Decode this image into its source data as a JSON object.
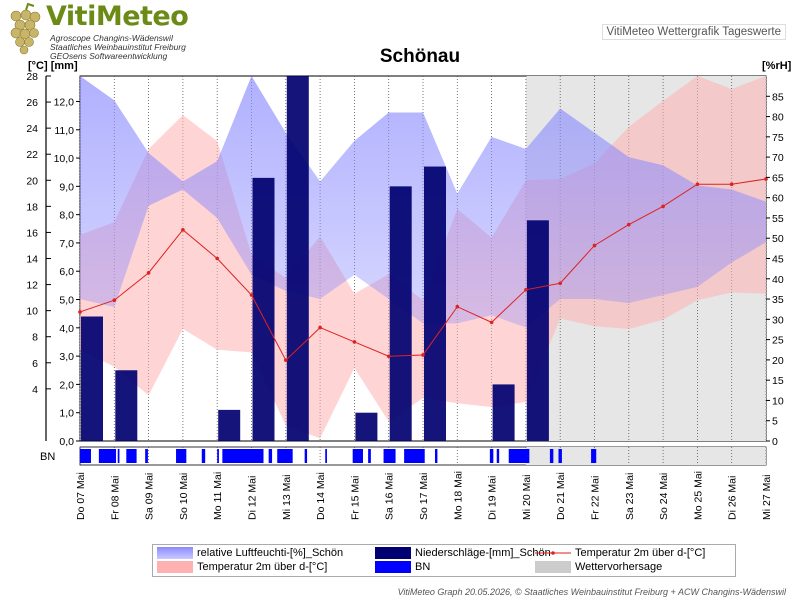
{
  "header": {
    "brand": "VitiMeteo",
    "brand_lines": [
      "Agroscope Changins-Wädenswil",
      "Staatliches Weinbauinstitut Freiburg",
      "GEOsens Softwareentwicklung"
    ],
    "top_right": "VitiMeteo Wettergrafik Tageswerte"
  },
  "footer": "VitiMeteo Graph 20.05.2026, © Staatliches Weinbauinstitut Freiburg + ACW Changins-Wädenswil",
  "colors": {
    "humidity_band": "#8a8aff",
    "temp_band": "#ffb0b0",
    "precip": "#000070",
    "temp_line": "#dd2222",
    "bn": "#0000ff",
    "forecast": "#e6e6e6"
  },
  "chart_data": {
    "type": "line",
    "title": "Schönau",
    "ylabel_left": "[°C] [mm]",
    "ylabel_right": "[%rH]",
    "x": [
      "Do 07 Mai",
      "Fr 08 Mai",
      "Sa 09 Mai",
      "So 10 Mai",
      "Mo 11 Mai",
      "Di 12 Mai",
      "Mi 13 Mai",
      "Do 14 Mai",
      "Fr 15 Mai",
      "Sa 16 Mai",
      "So 17 Mai",
      "Mo 18 Mai",
      "Di 19 Mai",
      "Mi 20 Mai",
      "Do 21 Mai",
      "Fr 22 Mai",
      "Sa 23 Mai",
      "So 24 Mai",
      "Mo 25 Mai",
      "Di 26 Mai",
      "Mi 27 Mai"
    ],
    "ylim_temp": [
      0,
      28
    ],
    "ylim_precip": [
      0,
      12.9
    ],
    "ylim_humidity": [
      0,
      90
    ],
    "temp_ticks": [
      4,
      6,
      8,
      10,
      12,
      14,
      16,
      18,
      20,
      22,
      24,
      26,
      28
    ],
    "precip_ticks": [
      "0,0",
      "1,0",
      "2,0",
      "3,0",
      "4,0",
      "5,0",
      "6,0",
      "7,0",
      "8,0",
      "9,0",
      "10,0",
      "11,0",
      "12,0"
    ],
    "humidity_ticks": [
      0,
      5,
      10,
      15,
      20,
      25,
      30,
      35,
      40,
      45,
      50,
      55,
      60,
      65,
      70,
      75,
      80,
      85
    ],
    "series": [
      {
        "name": "Temperatur 2m über d-[°C]",
        "kind": "line",
        "values": [
          9.9,
          10.8,
          12.9,
          16.2,
          14.0,
          11.2,
          6.2,
          8.7,
          7.6,
          6.5,
          6.6,
          10.3,
          9.1,
          11.6,
          12.1,
          15.0,
          16.6,
          18.0,
          19.7,
          19.7,
          20.1
        ]
      },
      {
        "name": "Temperatur 2m über d-[°C]",
        "kind": "band",
        "min": [
          7.0,
          5.7,
          3.5,
          8.6,
          7.0,
          6.8,
          1.2,
          0.2,
          5.6,
          1.5,
          3.3,
          2.9,
          2.6,
          3.0,
          9.4,
          8.8,
          8.6,
          9.3,
          10.8,
          11.4,
          11.3
        ],
        "max": [
          15.8,
          16.8,
          22.4,
          25.0,
          23.0,
          14.3,
          12.5,
          15.7,
          11.3,
          12.8,
          10.8,
          17.8,
          15.6,
          20.0,
          20.1,
          21.3,
          24.1,
          26.1,
          28.0,
          27.0,
          28.0
        ]
      },
      {
        "name": "relative Luftfeuchti-[%]_Schön",
        "kind": "band",
        "min": [
          35,
          33,
          58,
          62,
          55,
          41,
          37,
          35,
          41,
          35,
          29,
          29,
          31,
          28,
          35,
          35,
          34,
          36,
          38,
          44,
          49
        ],
        "max": [
          90,
          84,
          71,
          64,
          69,
          90,
          76,
          64,
          74,
          81,
          81,
          61,
          75,
          72,
          82,
          76,
          70,
          68,
          63,
          62,
          59
        ]
      },
      {
        "name": "Niederschläge-[mm]_Schön",
        "kind": "bar",
        "values": [
          4.4,
          2.5,
          0.0,
          0.0,
          1.1,
          9.3,
          12.9,
          0.0,
          1.0,
          9.0,
          9.7,
          0.0,
          2.0,
          7.8,
          0.0,
          0.0,
          0.0,
          0.0,
          0.0,
          0.0,
          0.0
        ]
      }
    ],
    "bn_label": "BN",
    "bn_intervals": [
      [
        0.0,
        0.32
      ],
      [
        0.55,
        1.05
      ],
      [
        1.1,
        1.15
      ],
      [
        1.35,
        1.65
      ],
      [
        1.9,
        1.98
      ],
      [
        2.8,
        3.1
      ],
      [
        3.55,
        3.65
      ],
      [
        4.0,
        4.05
      ],
      [
        4.15,
        5.35
      ],
      [
        5.5,
        5.6
      ],
      [
        5.75,
        6.2
      ],
      [
        6.55,
        6.62
      ],
      [
        7.15,
        7.2
      ],
      [
        7.95,
        8.25
      ],
      [
        8.4,
        8.48
      ],
      [
        8.85,
        9.2
      ],
      [
        9.45,
        10.05
      ],
      [
        10.35,
        10.42
      ],
      [
        11.95,
        12.05
      ],
      [
        12.15,
        12.22
      ],
      [
        12.5,
        13.1
      ],
      [
        13.7,
        13.8
      ],
      [
        13.95,
        14.05
      ],
      [
        14.9,
        15.05
      ]
    ],
    "forecast_from": "Mi 20 Mai",
    "legend": [
      {
        "label": "relative Luftfeuchti-[%]_Schön"
      },
      {
        "label": "Niederschläge-[mm]_Schön"
      },
      {
        "label": "Temperatur 2m über d-[°C]"
      },
      {
        "label": "Temperatur 2m über d-[°C]"
      },
      {
        "label": "BN"
      },
      {
        "label": "Wettervorhersage"
      }
    ]
  }
}
